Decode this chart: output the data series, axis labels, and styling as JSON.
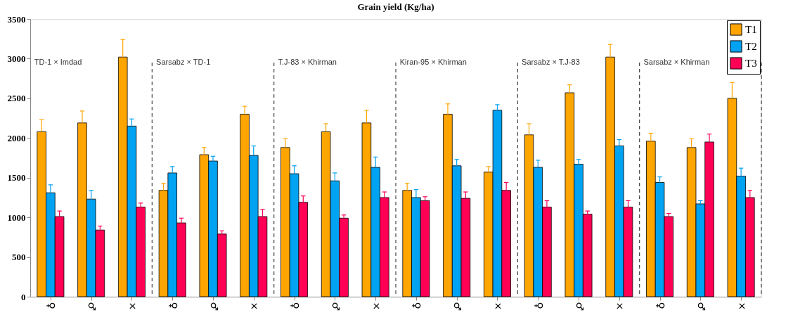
{
  "chart_data": {
    "type": "bar",
    "title": "Grain yield (Kg/ha)",
    "categories": [
      "♀",
      "♂",
      "×",
      "♀",
      "♂",
      "×",
      "♀",
      "♂",
      "×",
      "♀",
      "♂",
      "×",
      "♀",
      "♂",
      "×",
      "♀",
      "♂",
      "×"
    ],
    "series": [
      {
        "name": "T1",
        "color": "#ffa500",
        "values": [
          2080,
          2190,
          3020,
          1340,
          1790,
          2300,
          1880,
          2080,
          2190,
          1340,
          2300,
          1570,
          2040,
          2570,
          3020,
          1960,
          1880,
          2500
        ],
        "errors": [
          [
            2080,
            2230
          ],
          [
            2190,
            2340
          ],
          [
            3020,
            3240
          ],
          [
            1340,
            1430
          ],
          [
            1790,
            1880
          ],
          [
            2300,
            2400
          ],
          [
            1880,
            1990
          ],
          [
            2080,
            2180
          ],
          [
            2190,
            2350
          ],
          [
            1340,
            1430
          ],
          [
            2300,
            2430
          ],
          [
            1570,
            1640
          ],
          [
            2040,
            2180
          ],
          [
            2570,
            2670
          ],
          [
            3020,
            3180
          ],
          [
            1960,
            2060
          ],
          [
            1880,
            1990
          ],
          [
            2500,
            2700
          ]
        ]
      },
      {
        "name": "T2",
        "color": "#00a2f2",
        "values": [
          1310,
          1230,
          2150,
          1560,
          1710,
          1780,
          1550,
          1460,
          1630,
          1250,
          1650,
          2350,
          1630,
          1670,
          1900,
          1440,
          1170,
          1520
        ],
        "errors": [
          [
            1310,
            1410
          ],
          [
            1230,
            1340
          ],
          [
            2150,
            2240
          ],
          [
            1560,
            1640
          ],
          [
            1710,
            1770
          ],
          [
            1780,
            1900
          ],
          [
            1550,
            1650
          ],
          [
            1460,
            1560
          ],
          [
            1630,
            1760
          ],
          [
            1250,
            1350
          ],
          [
            1650,
            1730
          ],
          [
            2350,
            2420
          ],
          [
            1630,
            1720
          ],
          [
            1670,
            1730
          ],
          [
            1900,
            1980
          ],
          [
            1440,
            1510
          ],
          [
            1170,
            1210
          ],
          [
            1520,
            1620
          ]
        ]
      },
      {
        "name": "T3",
        "color": "#ff0055",
        "values": [
          1010,
          840,
          1130,
          930,
          790,
          1010,
          1190,
          990,
          1250,
          1210,
          1240,
          1340,
          1130,
          1040,
          1130,
          1010,
          1950,
          1250
        ],
        "errors": [
          [
            1010,
            1080
          ],
          [
            840,
            890
          ],
          [
            1130,
            1180
          ],
          [
            930,
            990
          ],
          [
            790,
            830
          ],
          [
            1010,
            1100
          ],
          [
            1190,
            1270
          ],
          [
            990,
            1030
          ],
          [
            1250,
            1320
          ],
          [
            1210,
            1260
          ],
          [
            1240,
            1320
          ],
          [
            1340,
            1440
          ],
          [
            1130,
            1210
          ],
          [
            1040,
            1080
          ],
          [
            1130,
            1210
          ],
          [
            1010,
            1050
          ],
          [
            1950,
            2050
          ],
          [
            1250,
            1340
          ]
        ]
      }
    ],
    "annotations": [
      "TD-1 × Imdad",
      "Sarsabz × TD-1",
      "T.J-83 × Khirman",
      "Kiran-95 × Khirman",
      "Sarsabz × T.J-83",
      "Sarsabz × Khirman"
    ],
    "ylim": [
      0,
      3500
    ],
    "yticks": [
      0,
      500,
      1000,
      1500,
      2000,
      2500,
      3000,
      3500
    ],
    "grid": false,
    "legend": "top right"
  }
}
